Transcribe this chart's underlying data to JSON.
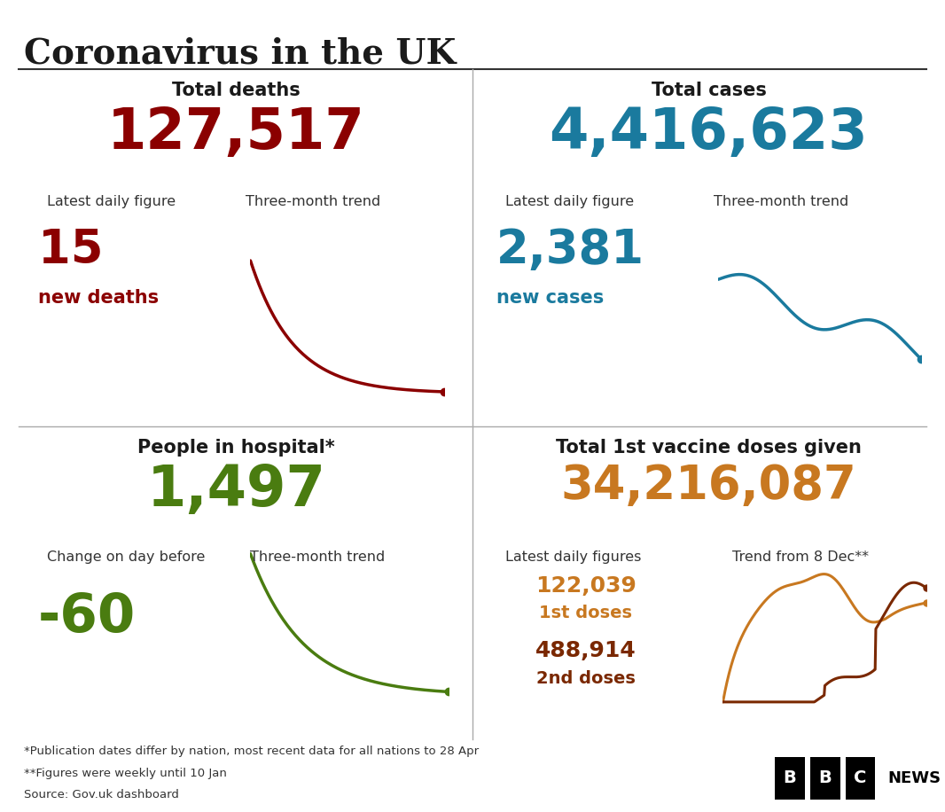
{
  "title": "Coronavirus in the UK",
  "bg_color": "#ffffff",
  "title_color": "#1a1a1a",
  "quadrants": [
    {
      "label": "Total deaths",
      "big_number": "127,517",
      "big_color": "#8b0000",
      "sub_label1": "Latest daily figure",
      "sub_label2": "Three-month trend",
      "daily_number": "15",
      "daily_sub": "new deaths",
      "daily_color": "#8b0000",
      "trend_color": "#8b0000"
    },
    {
      "label": "Total cases",
      "big_number": "4,416,623",
      "big_color": "#1a7a9e",
      "sub_label1": "Latest daily figure",
      "sub_label2": "Three-month trend",
      "daily_number": "2,381",
      "daily_sub": "new cases",
      "daily_color": "#1a7a9e",
      "trend_color": "#1a7a9e"
    },
    {
      "label": "People in hospital*",
      "big_number": "1,497",
      "big_color": "#4a7c10",
      "sub_label1": "Change on day before",
      "sub_label2": "Three-month trend",
      "daily_number": "-60",
      "daily_sub": "",
      "daily_color": "#4a7c10",
      "trend_color": "#4a7c10"
    },
    {
      "label": "Total 1st vaccine doses given",
      "big_number": "34,216,087",
      "big_color": "#c87820",
      "sub_label1": "Latest daily figures",
      "sub_label2": "Trend from 8 Dec**",
      "daily_number1": "122,039",
      "daily_sub1": "1st doses",
      "daily_color1": "#c87820",
      "daily_number2": "488,914",
      "daily_sub2": "2nd doses",
      "daily_color2": "#7a2800",
      "trend_color1": "#c87820",
      "trend_color2": "#7a2800"
    }
  ],
  "footnote1": "*Publication dates differ by nation, most recent data for all nations to 28 Apr",
  "footnote2": "**Figures were weekly until 10 Jan",
  "footnote3": "Source: Gov.uk dashboard",
  "footnote_color": "#333333"
}
